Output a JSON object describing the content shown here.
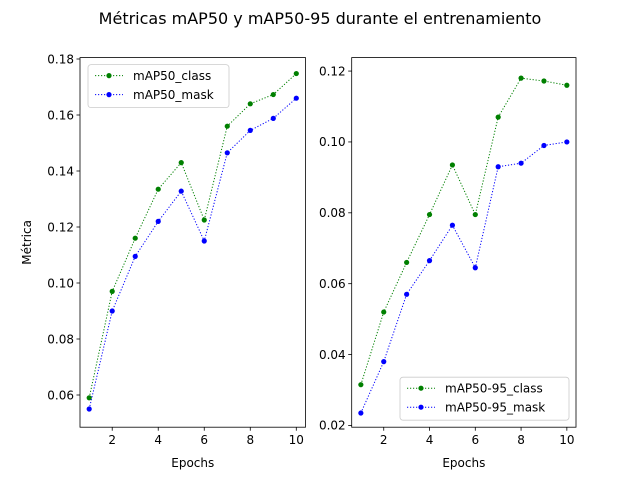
{
  "suptitle": "Métricas mAP50 y mAP50-95 durante el entrenamiento",
  "chart_data": [
    {
      "type": "line",
      "xlabel": "Epochs",
      "ylabel": "Métrica",
      "x": [
        1,
        2,
        3,
        4,
        5,
        6,
        7,
        8,
        9,
        10
      ],
      "xlim": [
        0.6,
        10.4
      ],
      "ylim": [
        0.0485,
        0.1805
      ],
      "xticks": [
        2,
        4,
        6,
        8,
        10
      ],
      "yticks": [
        0.06,
        0.08,
        0.1,
        0.12,
        0.14,
        0.16,
        0.18
      ],
      "ytick_labels": [
        "0.06",
        "0.08",
        "0.10",
        "0.12",
        "0.14",
        "0.16",
        "0.18"
      ],
      "legend_position": "upper-left",
      "grid": false,
      "series": [
        {
          "name": "mAP50_class",
          "color": "#008000",
          "values": [
            0.059,
            0.097,
            0.116,
            0.1335,
            0.143,
            0.1225,
            0.156,
            0.164,
            0.1673,
            0.1748
          ]
        },
        {
          "name": "mAP50_mask",
          "color": "#0000ff",
          "values": [
            0.055,
            0.09,
            0.1095,
            0.122,
            0.1328,
            0.115,
            0.1465,
            0.1545,
            0.1588,
            0.166
          ]
        }
      ]
    },
    {
      "type": "line",
      "xlabel": "Epochs",
      "ylabel": "",
      "x": [
        1,
        2,
        3,
        4,
        5,
        6,
        7,
        8,
        9,
        10
      ],
      "xlim": [
        0.6,
        10.4
      ],
      "ylim": [
        0.0195,
        0.1238
      ],
      "xticks": [
        2,
        4,
        6,
        8,
        10
      ],
      "yticks": [
        0.02,
        0.04,
        0.06,
        0.08,
        0.1,
        0.12
      ],
      "ytick_labels": [
        "0.02",
        "0.04",
        "0.06",
        "0.08",
        "0.10",
        "0.12"
      ],
      "legend_position": "lower-right",
      "grid": false,
      "series": [
        {
          "name": "mAP50-95_class",
          "color": "#008000",
          "values": [
            0.0315,
            0.052,
            0.066,
            0.0795,
            0.0935,
            0.0795,
            0.107,
            0.118,
            0.1172,
            0.116
          ]
        },
        {
          "name": "mAP50-95_mask",
          "color": "#0000ff",
          "values": [
            0.0235,
            0.038,
            0.057,
            0.0665,
            0.0765,
            0.0645,
            0.093,
            0.094,
            0.099,
            0.1
          ]
        }
      ]
    }
  ]
}
